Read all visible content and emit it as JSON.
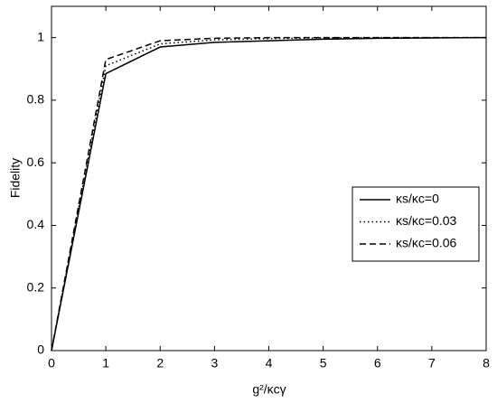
{
  "chart_data": {
    "type": "line",
    "xlabel": "g²/κcγ",
    "ylabel": "Fidelity",
    "x": [
      0,
      1,
      2,
      3,
      4,
      5,
      6,
      7,
      8
    ],
    "series": [
      {
        "name": "κs/κc=0",
        "color": "#000000",
        "style": "solid",
        "values": [
          0,
          0.885,
          0.97,
          0.985,
          0.99,
          0.995,
          0.998,
          0.999,
          1
        ]
      },
      {
        "name": "κs/κc=0.03",
        "color": "#000000",
        "style": "dotted",
        "values": [
          0,
          0.91,
          0.98,
          0.993,
          0.997,
          0.999,
          1,
          1,
          1
        ]
      },
      {
        "name": "κs/κc=0.06",
        "color": "#000000",
        "style": "dashed",
        "values": [
          0,
          0.93,
          0.99,
          0.998,
          1,
          1,
          1,
          1,
          1
        ]
      }
    ],
    "xlim": [
      0,
      8
    ],
    "xticks": [
      0,
      1,
      2,
      3,
      4,
      5,
      6,
      7,
      8
    ],
    "ylim": [
      0,
      1.1
    ],
    "yticks": [
      0,
      0.2,
      0.4,
      0.6,
      0.8,
      1
    ],
    "grid": false,
    "legend": "right"
  }
}
